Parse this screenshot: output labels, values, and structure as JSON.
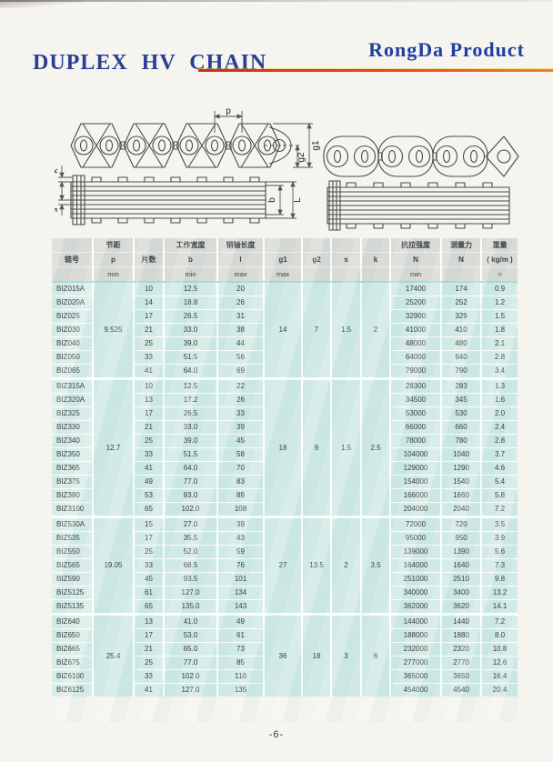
{
  "page": {
    "title": "DUPLEX HV CHAIN",
    "brand": "RongDa Product",
    "page_number": "-6-",
    "colors": {
      "title_blue": "#2a3f92",
      "brand_blue": "#1f3ea0",
      "accent_red_line": "#e34a21",
      "table_header_gray": "#d8d8d4",
      "table_cell_cyan": "#cfe9e4"
    }
  },
  "diagram": {
    "labels": {
      "p": "p",
      "g1": "g1",
      "g2": "g2",
      "k": "k",
      "s": "s",
      "b": "b",
      "L": "L"
    }
  },
  "table": {
    "header": {
      "columns": [
        {
          "id": "model",
          "lines": [
            "",
            "链号",
            ""
          ]
        },
        {
          "id": "pitch",
          "lines": [
            "节距",
            "p",
            "mm"
          ]
        },
        {
          "id": "plates",
          "lines": [
            "",
            "片数",
            ""
          ]
        },
        {
          "id": "width",
          "lines": [
            "工作宽度",
            "b",
            "min"
          ]
        },
        {
          "id": "pin",
          "lines": [
            "销轴长度",
            "l",
            "max"
          ]
        },
        {
          "id": "g1",
          "lines": [
            "",
            "g1",
            "max"
          ]
        },
        {
          "id": "g2",
          "lines": [
            "",
            "g2",
            ""
          ]
        },
        {
          "id": "s",
          "lines": [
            "",
            "s",
            ""
          ]
        },
        {
          "id": "k",
          "lines": [
            "",
            "k",
            ""
          ]
        },
        {
          "id": "tensile",
          "lines": [
            "抗拉强度",
            "N",
            "min"
          ]
        },
        {
          "id": "force",
          "lines": [
            "测量力",
            "N",
            ""
          ]
        },
        {
          "id": "weight",
          "lines": [
            "重量",
            "( kg/m )",
            "≈"
          ]
        }
      ]
    },
    "groups": [
      {
        "pitch": "9.525",
        "g1": "14",
        "g2": "7",
        "s": "1.5",
        "k": "2",
        "rows": [
          [
            "BIZ015A",
            "10",
            "12.5",
            "20",
            "17400",
            "174",
            "0.9"
          ],
          [
            "BIZ020A",
            "14",
            "18.8",
            "26",
            "25200",
            "252",
            "1.2"
          ],
          [
            "BIZ025",
            "17",
            "26.5",
            "31",
            "32900",
            "329",
            "1.5"
          ],
          [
            "BIZ030",
            "21",
            "33.0",
            "38",
            "41000",
            "410",
            "1.8"
          ],
          [
            "BIZ040",
            "25",
            "39.0",
            "44",
            "48000",
            "480",
            "2.1"
          ],
          [
            "BIZ050",
            "33",
            "51.5",
            "56",
            "64000",
            "640",
            "2.8"
          ],
          [
            "BIZ065",
            "41",
            "64.0",
            "69",
            "79000",
            "790",
            "3.4"
          ]
        ]
      },
      {
        "pitch": "12.7",
        "g1": "18",
        "g2": "9",
        "s": "1.5",
        "k": "2.5",
        "rows": [
          [
            "BIZ315A",
            "10",
            "12.5",
            "22",
            "28300",
            "283",
            "1.3"
          ],
          [
            "BIZ320A",
            "13",
            "17.2",
            "26",
            "34500",
            "345",
            "1.6"
          ],
          [
            "BIZ325",
            "17",
            "26.5",
            "33",
            "53000",
            "530",
            "2.0"
          ],
          [
            "BIZ330",
            "21",
            "33.0",
            "39",
            "66000",
            "660",
            "2.4"
          ],
          [
            "BIZ340",
            "25",
            "39.0",
            "45",
            "78000",
            "780",
            "2.8"
          ],
          [
            "BIZ350",
            "33",
            "51.5",
            "58",
            "104000",
            "1040",
            "3.7"
          ],
          [
            "BIZ365",
            "41",
            "64.0",
            "70",
            "129000",
            "1290",
            "4.6"
          ],
          [
            "BIZ375",
            "49",
            "77.0",
            "83",
            "154000",
            "1540",
            "5.4"
          ],
          [
            "BIZ380",
            "53",
            "83.0",
            "89",
            "166000",
            "1660",
            "5.8"
          ],
          [
            "BIZ3100",
            "65",
            "102.0",
            "108",
            "204000",
            "2040",
            "7.2"
          ]
        ]
      },
      {
        "pitch": "19.05",
        "g1": "27",
        "g2": "13.5",
        "s": "2",
        "k": "3.5",
        "rows": [
          [
            "BIZ530A",
            "15",
            "27.0",
            "39",
            "72000",
            "720",
            "3.5"
          ],
          [
            "BIZ535",
            "17",
            "35.5",
            "43",
            "95000",
            "950",
            "3.9"
          ],
          [
            "BIZ550",
            "25",
            "52.0",
            "59",
            "139000",
            "1390",
            "5.6"
          ],
          [
            "BIZ565",
            "33",
            "68.5",
            "76",
            "164000",
            "1640",
            "7.3"
          ],
          [
            "BIZ590",
            "45",
            "93.5",
            "101",
            "251000",
            "2510",
            "9.8"
          ],
          [
            "BIZ5125",
            "61",
            "127.0",
            "134",
            "340000",
            "3400",
            "13.2"
          ],
          [
            "BIZ5135",
            "65",
            "135.0",
            "143",
            "362000",
            "3620",
            "14.1"
          ]
        ]
      },
      {
        "pitch": "25.4",
        "g1": "36",
        "g2": "18",
        "s": "3",
        "k": "6",
        "rows": [
          [
            "BIZ640",
            "13",
            "41.0",
            "49",
            "144000",
            "1440",
            "7.2"
          ],
          [
            "BIZ650",
            "17",
            "53.0",
            "61",
            "188000",
            "1880",
            "8.0"
          ],
          [
            "BIZ665",
            "21",
            "65.0",
            "73",
            "232000",
            "2320",
            "10.8"
          ],
          [
            "BIZ675",
            "25",
            "77.0",
            "85",
            "277000",
            "2770",
            "12.6"
          ],
          [
            "BIZ6100",
            "33",
            "102.0",
            "110",
            "365000",
            "3650",
            "16.4"
          ],
          [
            "BIZ6125",
            "41",
            "127.0",
            "135",
            "454000",
            "4540",
            "20.4"
          ]
        ]
      }
    ]
  }
}
